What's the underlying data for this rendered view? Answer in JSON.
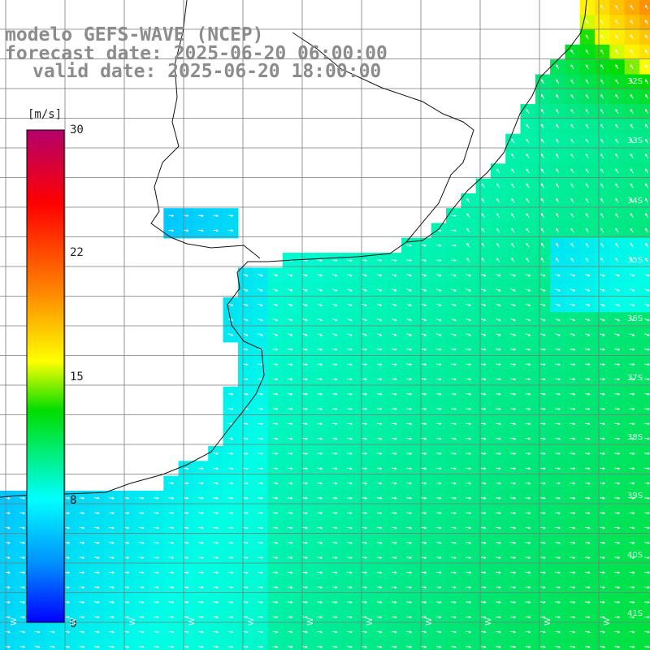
{
  "title": {
    "line1": "modelo GEFS-WAVE (NCEP)",
    "line2": "forecast date: 2025-06-20 06:00:00",
    "line3": "valid date: 2025-06-20 18:00:00"
  },
  "colorbar": {
    "unit": "[m/s]",
    "ticks": [
      "30",
      "22",
      "15",
      "8",
      "0"
    ],
    "colors": [
      "#b3006b",
      "#ff0000",
      "#ff7f00",
      "#ffff00",
      "#00dd00",
      "#00ffff",
      "#0090ff",
      "#0000ff"
    ]
  },
  "latitude_labels": [
    "32S",
    "33S",
    "34S",
    "35S",
    "36S",
    "37S",
    "38S",
    "39S",
    "40S",
    "41S"
  ],
  "longitude_labels": [
    "W",
    "W",
    "W",
    "W",
    "W",
    "W",
    "W",
    "W",
    "W",
    "W",
    "W"
  ],
  "colors": {
    "land": "#ffffff",
    "grid": "#7a7a7a",
    "coast": "#111111",
    "arrow": "#ffffff",
    "title": "#8c8c8c"
  }
}
